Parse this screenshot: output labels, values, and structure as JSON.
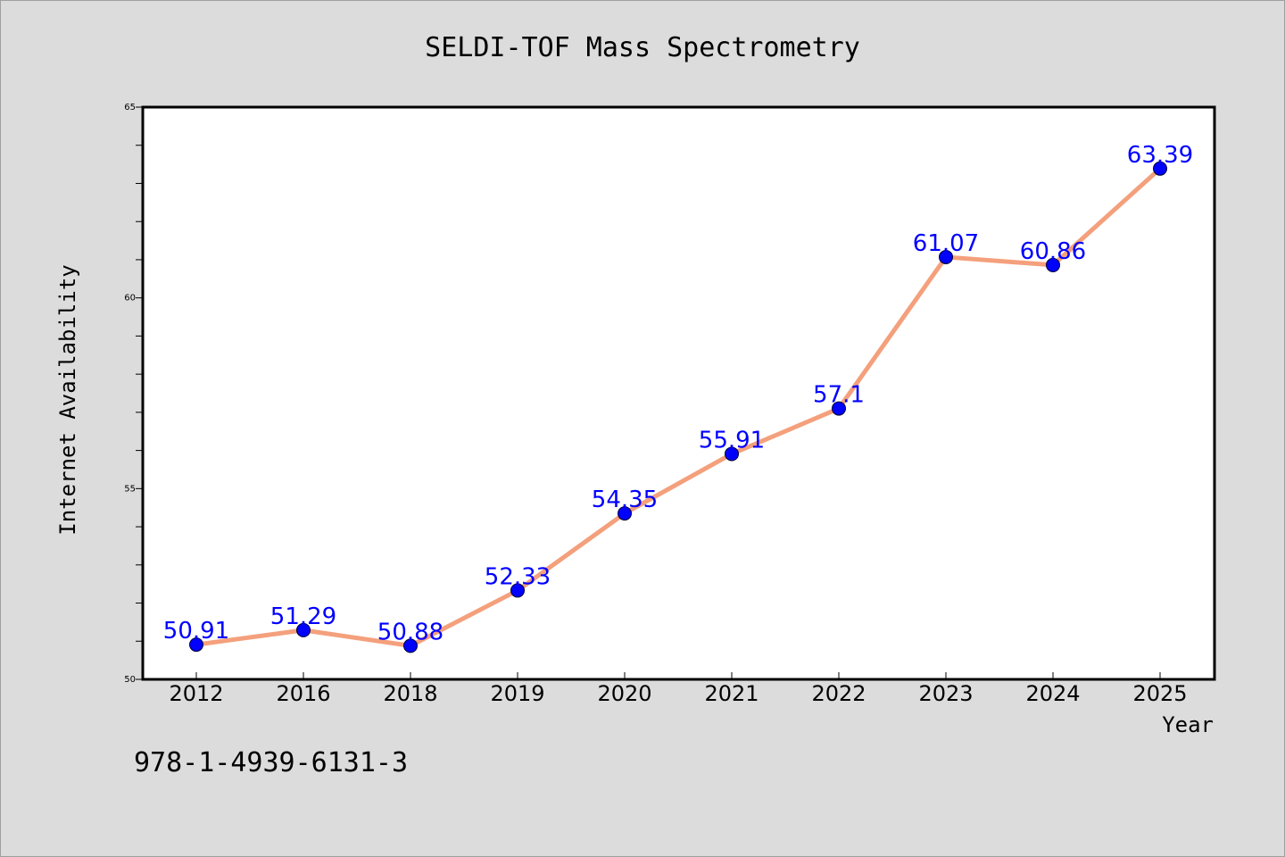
{
  "chart_data": {
    "type": "line",
    "title": "SELDI-TOF Mass Spectrometry",
    "xlabel": "Year",
    "ylabel": "Internet Availability",
    "categories": [
      "2012",
      "2016",
      "2018",
      "2019",
      "2020",
      "2021",
      "2022",
      "2023",
      "2024",
      "2025"
    ],
    "series": [
      {
        "values": [
          50.91,
          51.29,
          50.88,
          52.33,
          54.35,
          55.91,
          57.1,
          61.07,
          60.86,
          63.39
        ],
        "labels": [
          "50.91",
          "51.29",
          "50.88",
          "52.33",
          "54.35",
          "55.91",
          "57.1",
          "61.07",
          "60.86",
          "63.39"
        ]
      }
    ],
    "ylim": [
      50,
      65
    ],
    "yticks": [
      "50",
      "55",
      "60",
      "65"
    ],
    "grid": false,
    "colors": {
      "line": "#f4a07c",
      "marker": "#0000ff",
      "data_label": "#0000ff"
    }
  },
  "footer_text": "978-1-4939-6131-3"
}
